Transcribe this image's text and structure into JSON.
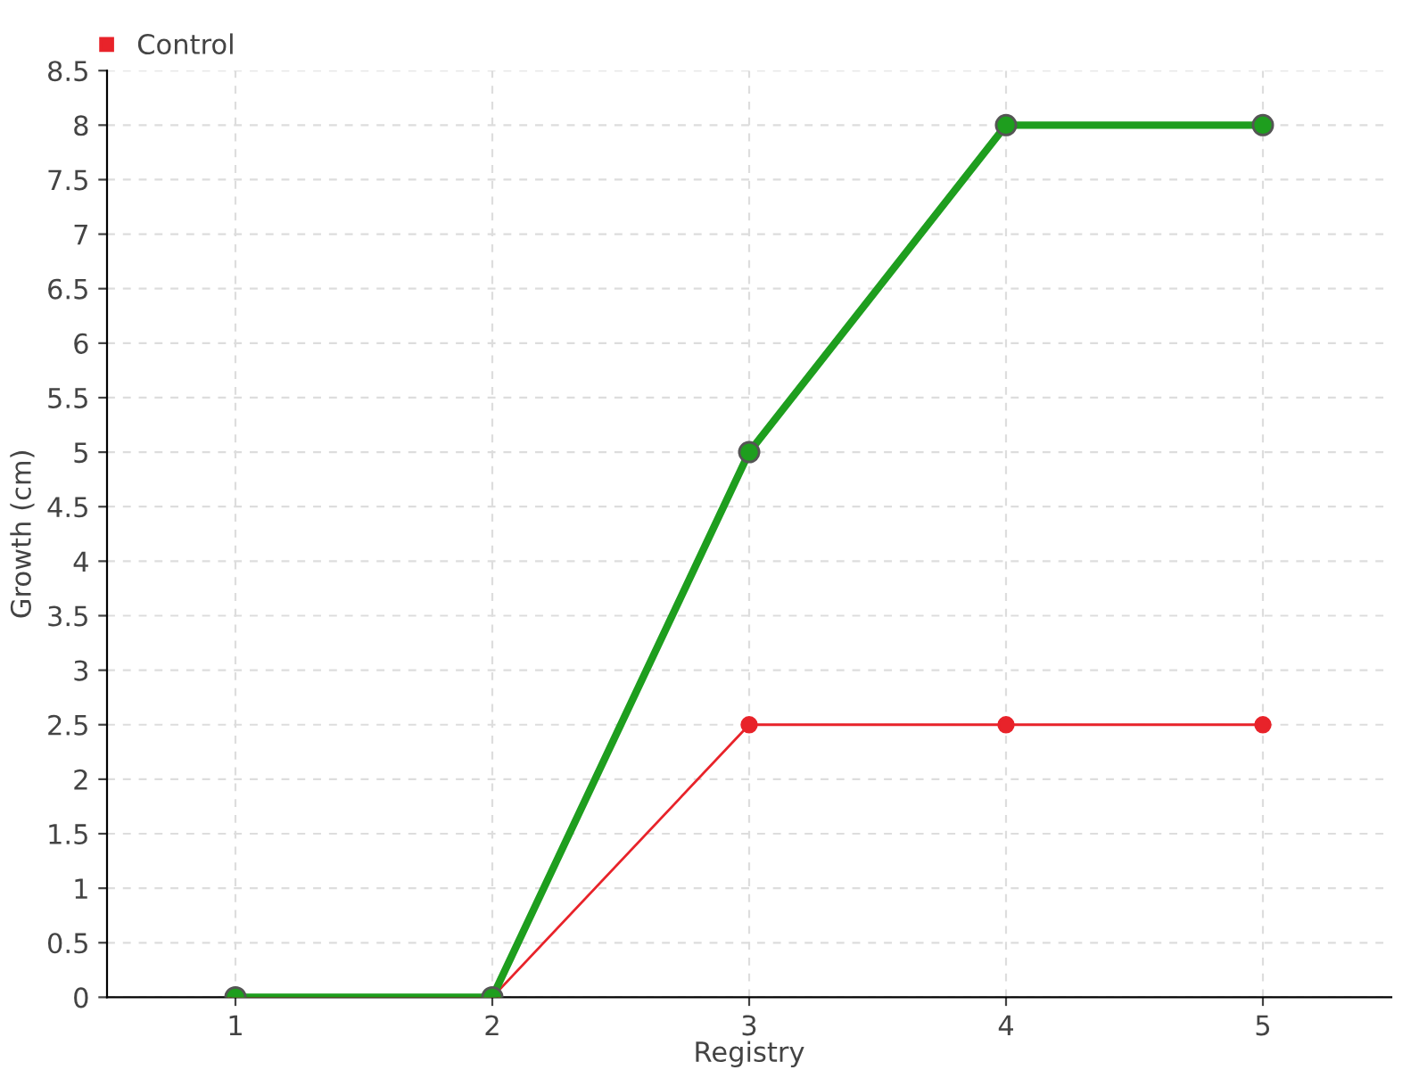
{
  "chart_data": {
    "type": "line",
    "xlabel": "Registry",
    "ylabel": "Growth (cm)",
    "categories": [
      "1",
      "2",
      "3",
      "4",
      "5"
    ],
    "series": [
      {
        "color": "#1e9e1e",
        "values": [
          0,
          0,
          5,
          8,
          8
        ]
      },
      {
        "name": "Control",
        "color": "#e8232a",
        "values": [
          0,
          0,
          2.5,
          2.5,
          2.5
        ]
      }
    ],
    "ylim": [
      0,
      8.5
    ],
    "yticks": [
      0,
      0.5,
      1,
      1.5,
      2,
      2.5,
      3,
      3.5,
      4,
      4.5,
      5,
      5.5,
      6,
      6.5,
      7,
      7.5,
      8,
      8.5
    ],
    "grid": true,
    "legend": "top left",
    "marker": "circle",
    "line_style": "solid"
  }
}
